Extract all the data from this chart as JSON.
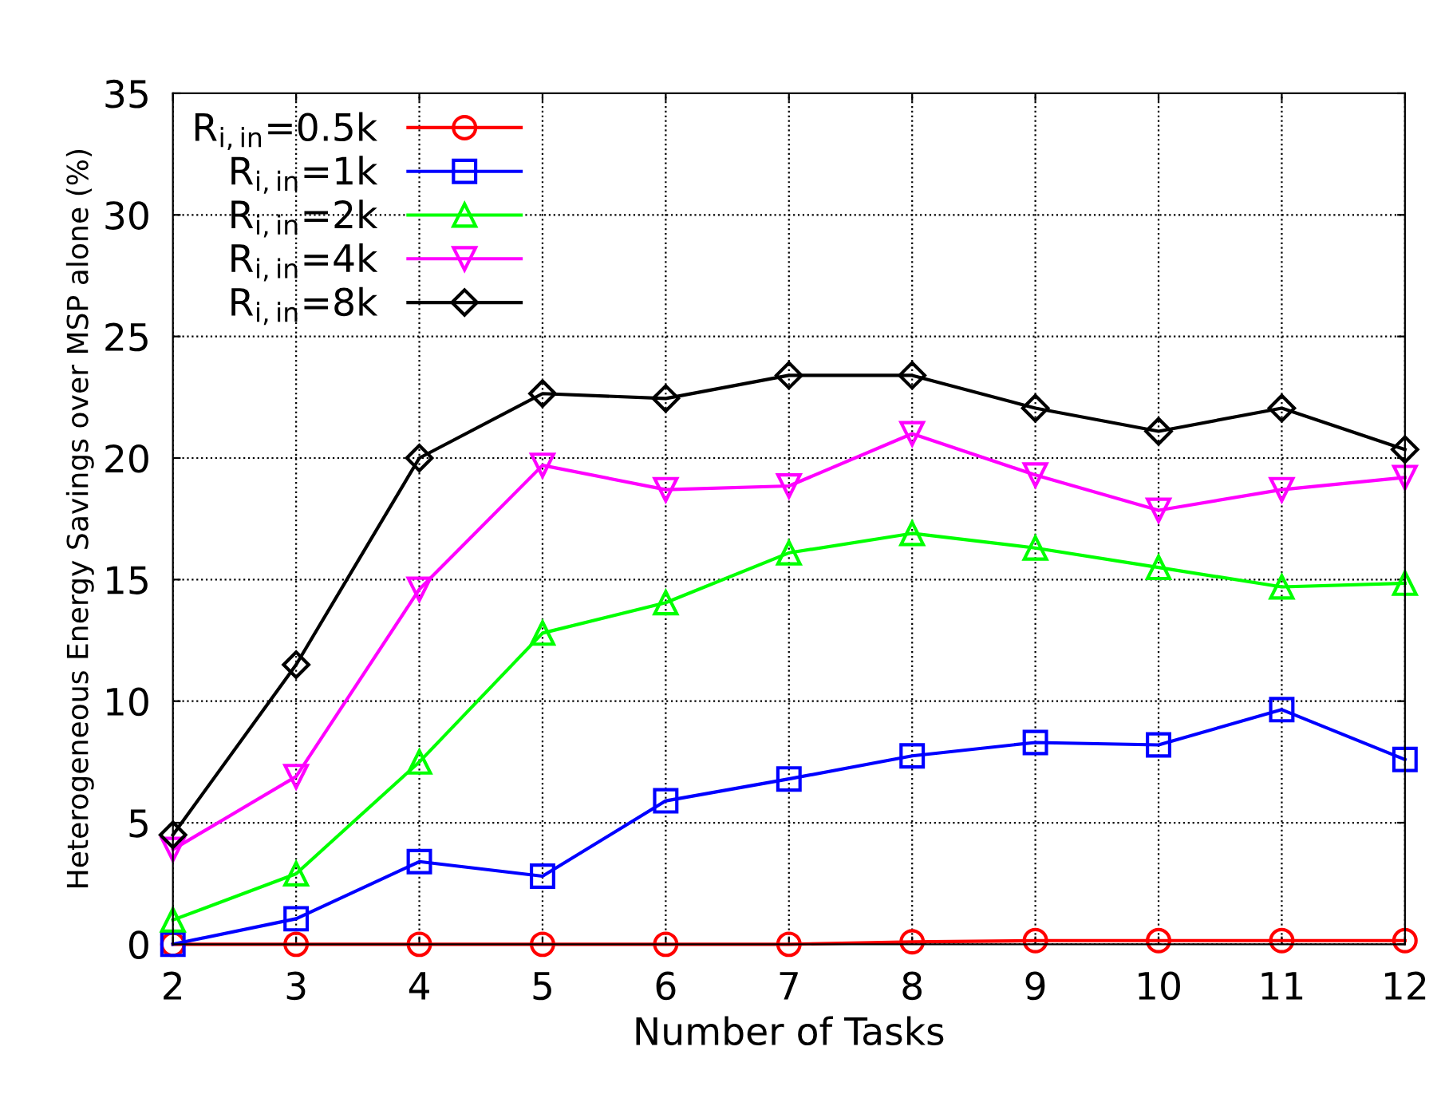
{
  "chart_data": {
    "type": "line",
    "xlabel": "Number of Tasks",
    "ylabel": "Heterogeneous Energy Savings over MSP alone (%)",
    "x": [
      2,
      3,
      4,
      5,
      6,
      7,
      8,
      9,
      10,
      11,
      12
    ],
    "xlim": [
      2,
      12
    ],
    "xticks": [
      2,
      3,
      4,
      5,
      6,
      7,
      8,
      9,
      10,
      11,
      12
    ],
    "ylim": [
      0,
      35
    ],
    "yticks": [
      0,
      5,
      10,
      15,
      20,
      25,
      30,
      35
    ],
    "grid": true,
    "legend": "top left",
    "line_style": "solid",
    "series": [
      {
        "name": "R$_{i,in}$=0.5k",
        "color": "#ff0000",
        "marker": "circle",
        "values": [
          0,
          0,
          0,
          0,
          0,
          0,
          0.1,
          0.15,
          0.15,
          0.15,
          0.15
        ]
      },
      {
        "name": "R$_{i,in}$=1k",
        "color": "#0000ff",
        "marker": "square",
        "values": [
          0,
          1.05,
          3.4,
          2.8,
          5.9,
          6.8,
          7.75,
          8.3,
          8.2,
          9.65,
          7.6
        ]
      },
      {
        "name": "R$_{i,in}$=2k",
        "color": "#00ff00",
        "marker": "triangle",
        "values": [
          1.0,
          2.9,
          7.5,
          12.8,
          14.05,
          16.1,
          16.9,
          16.3,
          15.5,
          14.7,
          14.85
        ]
      },
      {
        "name": "R$_{i,in}$=4k",
        "color": "#ff00ff",
        "marker": "triangle_down",
        "values": [
          3.9,
          6.9,
          14.6,
          19.7,
          18.7,
          18.85,
          21.0,
          19.3,
          17.85,
          18.7,
          19.2
        ]
      },
      {
        "name": "R$_{i,in}$=8k",
        "color": "#000000",
        "marker": "diamond",
        "values": [
          4.5,
          11.5,
          20.0,
          22.65,
          22.45,
          23.4,
          23.4,
          22.05,
          21.1,
          22.05,
          20.35
        ]
      }
    ]
  }
}
